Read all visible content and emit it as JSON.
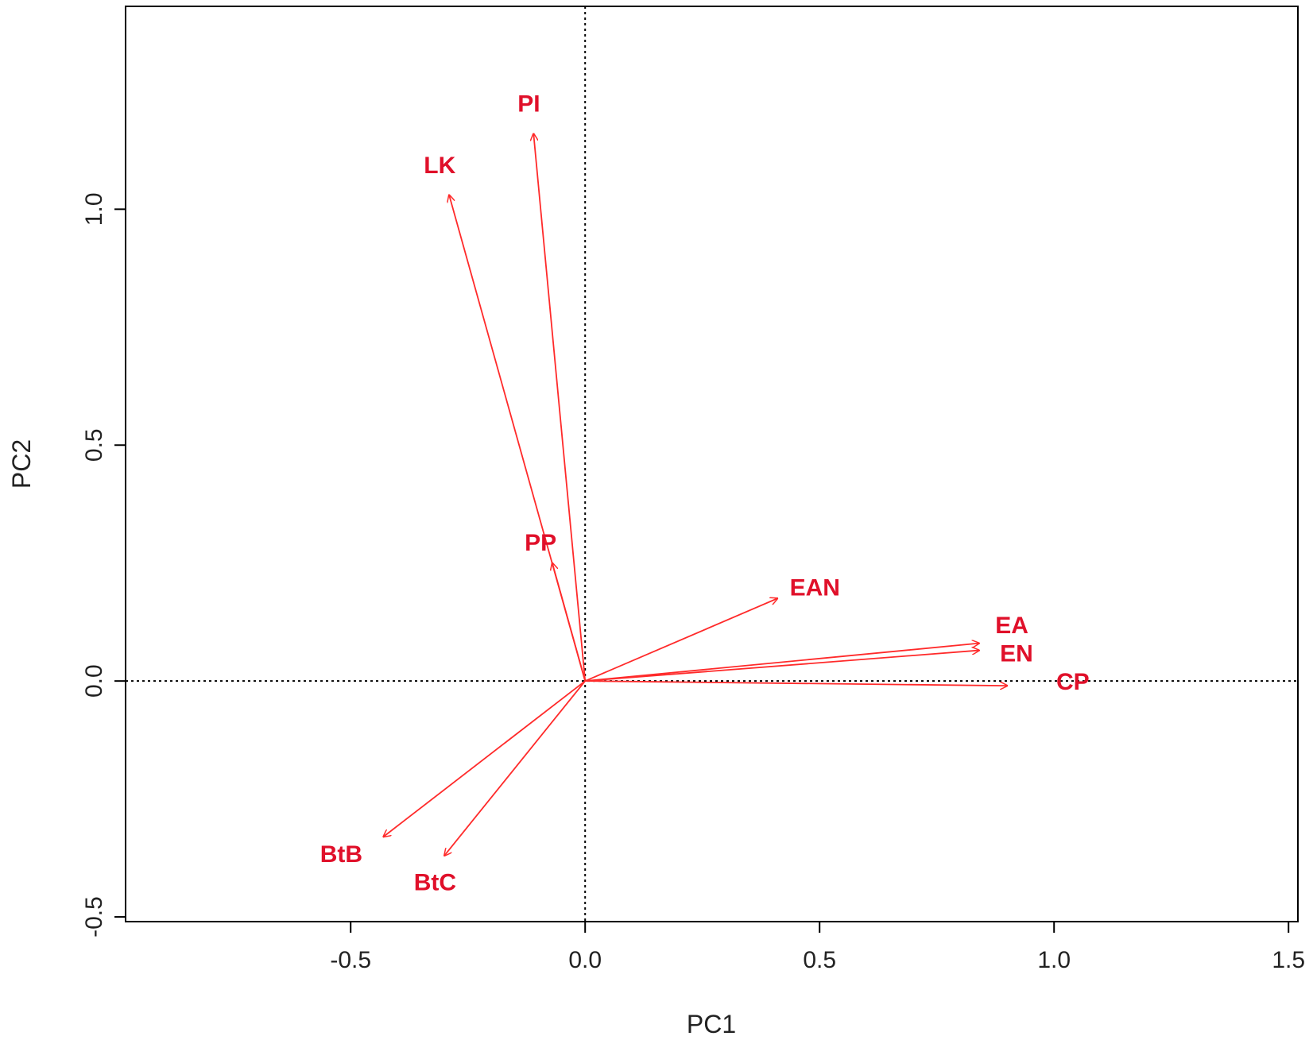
{
  "chart_data": {
    "type": "scatter",
    "title": "",
    "xlabel": "PC1",
    "ylabel": "PC2",
    "xlim": [
      -0.98,
      1.52
    ],
    "ylim": [
      -0.51,
      1.43
    ],
    "xticks": [
      -0.5,
      0.0,
      0.5,
      1.0,
      1.5
    ],
    "xtick_labels": [
      "-0.5",
      "0.0",
      "0.5",
      "1.0",
      "1.5"
    ],
    "yticks": [
      -0.5,
      0.0,
      0.5,
      1.0
    ],
    "ytick_labels": [
      "-0.5",
      "0.0",
      "0.5",
      "1.0"
    ],
    "reference_lines": {
      "x0": true,
      "y0": true,
      "style": "dotted"
    },
    "vector_color": "#ff2a2a",
    "label_color": "#e0102a",
    "vectors": [
      {
        "label": "PI",
        "x": -0.11,
        "y": 1.16,
        "label_x": -0.12,
        "label_y": 1.22
      },
      {
        "label": "LK",
        "x": -0.29,
        "y": 1.03,
        "label_x": -0.31,
        "label_y": 1.09
      },
      {
        "label": "PP",
        "x": -0.07,
        "y": 0.25,
        "label_x": -0.095,
        "label_y": 0.29
      },
      {
        "label": "EAN",
        "x": 0.41,
        "y": 0.175,
        "label_x": 0.49,
        "label_y": 0.195
      },
      {
        "label": "EA",
        "x": 0.84,
        "y": 0.08,
        "label_x": 0.91,
        "label_y": 0.115
      },
      {
        "label": "EN",
        "x": 0.84,
        "y": 0.065,
        "label_x": 0.92,
        "label_y": 0.055
      },
      {
        "label": "CP",
        "x": 0.9,
        "y": -0.01,
        "label_x": 1.04,
        "label_y": -0.005
      },
      {
        "label": "BtB",
        "x": -0.43,
        "y": -0.33,
        "label_x": -0.52,
        "label_y": -0.37
      },
      {
        "label": "BtC",
        "x": -0.3,
        "y": -0.37,
        "label_x": -0.32,
        "label_y": -0.43
      }
    ]
  }
}
